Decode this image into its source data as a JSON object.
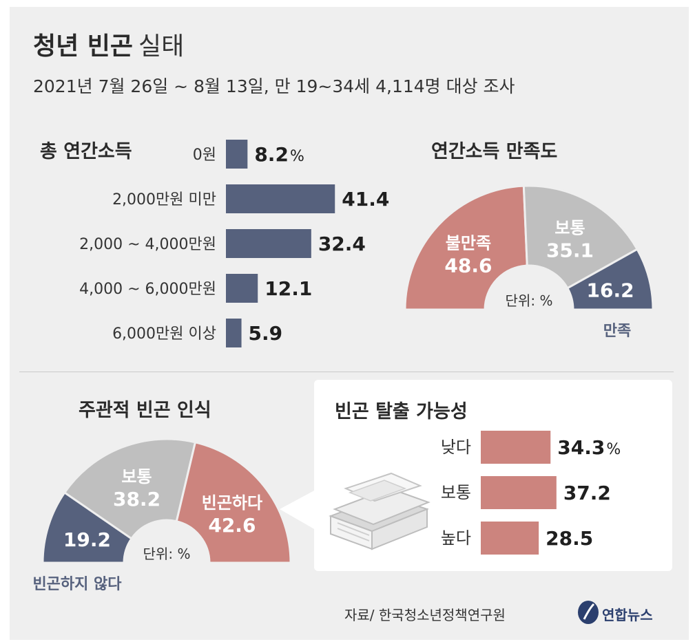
{
  "header": {
    "title": "청년 빈곤",
    "title_suffix": "실태",
    "subtitle": "2021년 7월 26일 ~ 8월 13일, 만 19~34세 4,114명 대상 조사"
  },
  "chart_data": [
    {
      "type": "bar",
      "orientation": "horizontal",
      "title": "총 연간소득",
      "categories": [
        "0원",
        "2,000만원 미만",
        "2,000 ~ 4,000만원",
        "4,000 ~ 6,000만원",
        "6,000만원 이상"
      ],
      "values": [
        8.2,
        41.4,
        32.4,
        12.1,
        5.9
      ],
      "value_labels": [
        "8.2",
        "41.4",
        "32.4",
        "12.1",
        "5.9"
      ],
      "unit": "%",
      "xlim": [
        0,
        45
      ],
      "color": "#56617d"
    },
    {
      "type": "pie",
      "variant": "half-donut",
      "title": "연간소득 만족도",
      "unit_note": "단위: %",
      "slices": [
        {
          "label": "불만족",
          "value": 48.6,
          "value_label": "48.6",
          "color": "#cc847e"
        },
        {
          "label": "보통",
          "value": 35.1,
          "value_label": "35.1",
          "color": "#bfbfbf"
        },
        {
          "label": "만족",
          "value": 16.2,
          "value_label": "16.2",
          "color": "#56617d"
        }
      ]
    },
    {
      "type": "pie",
      "variant": "half-donut",
      "title": "주관적 빈곤 인식",
      "unit_note": "단위: %",
      "slices": [
        {
          "label": "빈곤하지 않다",
          "value": 19.2,
          "value_label": "19.2",
          "color": "#56617d"
        },
        {
          "label": "보통",
          "value": 38.2,
          "value_label": "38.2",
          "color": "#bfbfbf"
        },
        {
          "label": "빈곤하다",
          "value": 42.6,
          "value_label": "42.6",
          "color": "#cc847e"
        }
      ]
    },
    {
      "type": "bar",
      "orientation": "horizontal",
      "title": "빈곤 탈출 가능성",
      "categories": [
        "낮다",
        "보통",
        "높다"
      ],
      "values": [
        34.3,
        37.2,
        28.5
      ],
      "value_labels": [
        "34.3",
        "37.2",
        "28.5"
      ],
      "unit": "%",
      "xlim": [
        0,
        42
      ],
      "color": "#cc847e"
    }
  ],
  "footer": {
    "source": "자료/ 한국청소년정책연구원",
    "logo": "연합뉴스"
  }
}
